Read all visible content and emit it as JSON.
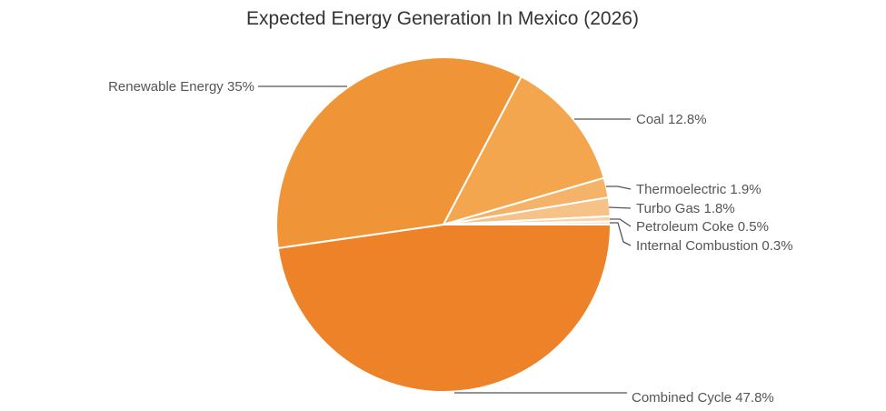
{
  "chart_data": {
    "type": "pie",
    "title": "Expected Energy Generation In Mexico (2026)",
    "series": [
      {
        "values": [
          {
            "label": "Combined Cycle 47.8%",
            "category": "Combined Cycle",
            "value": 47.8,
            "color": "#ee8229"
          },
          {
            "label": "Renewable Energy 35%",
            "category": "Renewable Energy",
            "value": 35,
            "color": "#f09537"
          },
          {
            "label": "Coal 12.8%",
            "category": "Coal",
            "value": 12.8,
            "color": "#f3a64e"
          },
          {
            "label": "Thermoelectric 1.9%",
            "category": "Thermoelectric",
            "value": 1.9,
            "color": "#f5b36a"
          },
          {
            "label": "Turbo Gas 1.8%",
            "category": "Turbo Gas",
            "value": 1.8,
            "color": "#f7c288"
          },
          {
            "label": "Petroleum Coke 0.5%",
            "category": "Petroleum Coke",
            "value": 0.5,
            "color": "#f9d2a8"
          },
          {
            "label": "Internal Combustion 0.3%",
            "category": "Internal Combustion",
            "value": 0.3,
            "color": "#fbe2c6"
          }
        ]
      }
    ],
    "legend": "none",
    "labels": "outside with leader lines"
  }
}
